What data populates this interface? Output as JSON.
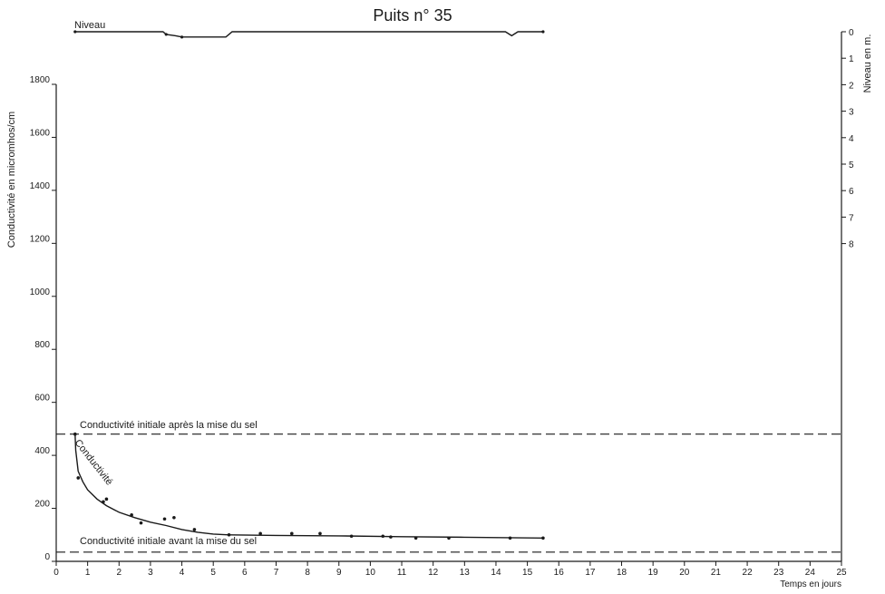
{
  "chart_data": {
    "type": "line",
    "title": "Puits n° 35",
    "xlabel": "Temps en jours",
    "ylabel": "Conductivité en micromhos/cm",
    "y2label": "Niveau en m.",
    "xlim": [
      0,
      25
    ],
    "ylim": [
      0,
      1800
    ],
    "y2lim": [
      0,
      8
    ],
    "x_ticks": [
      "0",
      "1",
      "2",
      "3",
      "4",
      "5",
      "6",
      "7",
      "8",
      "9",
      "10",
      "11",
      "12",
      "13",
      "14",
      "15",
      "16",
      "17",
      "18",
      "19",
      "20",
      "21",
      "22",
      "23",
      "24",
      "25"
    ],
    "y_ticks": [
      "0",
      "200",
      "400",
      "600",
      "800",
      "1000",
      "1200",
      "1400",
      "1600",
      "1800"
    ],
    "y2_ticks": [
      "0",
      "1",
      "2",
      "3",
      "4",
      "5",
      "6",
      "7",
      "8"
    ],
    "legend": "none",
    "grid": false,
    "annotations": {
      "niveau_label": "Niveau",
      "series_label": "Conductivité",
      "ref_after_label": "Conductivité initiale après la mise du sel",
      "ref_before_label": "Conductivité initiale avant la mise du sel"
    },
    "reference_lines": [
      {
        "name": "Conductivité initiale après la mise du sel",
        "y": 480
      },
      {
        "name": "Conductivité initiale avant la mise du sel",
        "y": 35
      }
    ],
    "series": [
      {
        "name": "Conductivité",
        "axis": "left",
        "style": "points",
        "points": [
          [
            0.6,
            480
          ],
          [
            0.7,
            315
          ],
          [
            1.5,
            225
          ],
          [
            1.6,
            235
          ],
          [
            2.4,
            175
          ],
          [
            2.7,
            145
          ],
          [
            3.45,
            160
          ],
          [
            3.75,
            165
          ],
          [
            4.4,
            120
          ],
          [
            5.5,
            100
          ],
          [
            6.5,
            105
          ],
          [
            7.5,
            105
          ],
          [
            8.4,
            105
          ],
          [
            9.4,
            95
          ],
          [
            10.4,
            95
          ],
          [
            10.65,
            92
          ],
          [
            11.45,
            88
          ],
          [
            12.5,
            88
          ],
          [
            14.45,
            88
          ],
          [
            15.5,
            88
          ]
        ]
      },
      {
        "name": "Conductivité",
        "axis": "left",
        "style": "fit",
        "points": [
          [
            0.6,
            480
          ],
          [
            0.62,
            420
          ],
          [
            0.7,
            340
          ],
          [
            0.85,
            300
          ],
          [
            1.0,
            270
          ],
          [
            1.3,
            235
          ],
          [
            1.6,
            210
          ],
          [
            2.0,
            185
          ],
          [
            2.5,
            165
          ],
          [
            3.0,
            148
          ],
          [
            3.5,
            135
          ],
          [
            4.0,
            120
          ],
          [
            4.5,
            110
          ],
          [
            5.0,
            103
          ],
          [
            5.5,
            100
          ],
          [
            7.0,
            98
          ],
          [
            9.0,
            96
          ],
          [
            11.0,
            93
          ],
          [
            13.0,
            91
          ],
          [
            15.5,
            88
          ]
        ]
      },
      {
        "name": "Niveau",
        "axis": "right",
        "style": "line",
        "points": [
          [
            0.6,
            0.0
          ],
          [
            3.4,
            0.0
          ],
          [
            3.5,
            0.1
          ],
          [
            3.8,
            0.15
          ],
          [
            4.0,
            0.2
          ],
          [
            4.5,
            0.2
          ],
          [
            5.0,
            0.2
          ],
          [
            5.4,
            0.2
          ],
          [
            5.6,
            0.0
          ],
          [
            14.3,
            0.0
          ],
          [
            14.5,
            0.15
          ],
          [
            14.7,
            0.0
          ],
          [
            15.5,
            0.0
          ]
        ]
      }
    ]
  }
}
